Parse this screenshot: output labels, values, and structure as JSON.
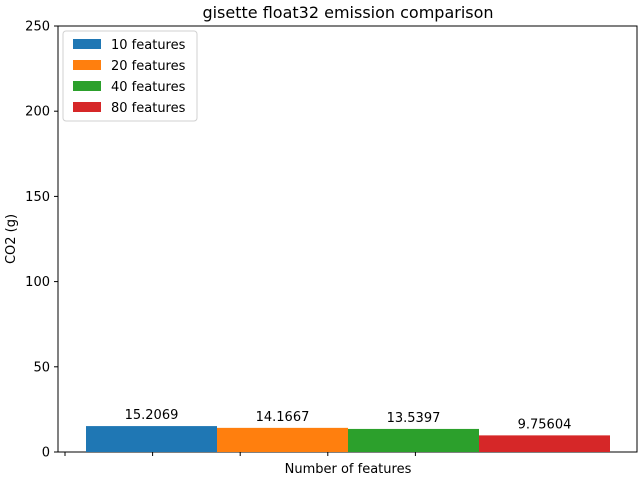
{
  "chart_data": {
    "type": "bar",
    "title": "gisette float32 emission comparison",
    "xlabel": "Number of features",
    "ylabel": "CO2 (g)",
    "ylim": [
      0,
      250
    ],
    "yticks": [
      0,
      50,
      100,
      150,
      200,
      250
    ],
    "grid": false,
    "legend_position": "top-left",
    "series": [
      {
        "name": "10 features",
        "value": 15.2069,
        "label": "15.2069",
        "color": "#1f77b4"
      },
      {
        "name": "20 features",
        "value": 14.1667,
        "label": "14.1667",
        "color": "#ff7f0e"
      },
      {
        "name": "40 features",
        "value": 13.5397,
        "label": "13.5397",
        "color": "#2ca02c"
      },
      {
        "name": "80 features",
        "value": 9.75604,
        "label": "9.75604",
        "color": "#d62728"
      }
    ]
  }
}
